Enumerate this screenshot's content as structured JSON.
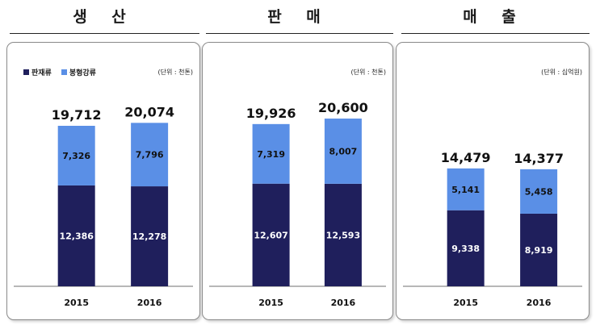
{
  "colors": {
    "panel_product": "#1f1f5c",
    "display_product": "#5a8fe6",
    "axis": "#6f6f6f"
  },
  "panels": [
    {
      "title": "생 산",
      "unit": "(단위 : 천톤)",
      "show_legend": true
    },
    {
      "title": "판 매",
      "unit": "(단위 : 천톤)",
      "show_legend": false
    },
    {
      "title": "매 출",
      "unit": "(단위 : 십억원)",
      "show_legend": false
    }
  ],
  "legend": {
    "panel_label": "판재류",
    "display_label": "봉형강류"
  },
  "chart_data": [
    {
      "type": "bar",
      "stacked": true,
      "title": "생 산",
      "unit": "(단위 : 천톤)",
      "categories": [
        "2015",
        "2016"
      ],
      "series": [
        {
          "name": "판재류",
          "values": [
            12386,
            12278
          ]
        },
        {
          "name": "봉형강류",
          "values": [
            7326,
            7796
          ]
        }
      ],
      "totals": [
        19712,
        20074
      ],
      "total_labels": [
        "19,712",
        "20,074"
      ],
      "value_labels": [
        [
          "12,386",
          "12,278"
        ],
        [
          "7,326",
          "7,796"
        ]
      ]
    },
    {
      "type": "bar",
      "stacked": true,
      "title": "판 매",
      "unit": "(단위 : 천톤)",
      "categories": [
        "2015",
        "2016"
      ],
      "series": [
        {
          "name": "판재류",
          "values": [
            12607,
            12593
          ]
        },
        {
          "name": "봉형강류",
          "values": [
            7319,
            8007
          ]
        }
      ],
      "totals": [
        19926,
        20600
      ],
      "total_labels": [
        "19,926",
        "20,600"
      ],
      "value_labels": [
        [
          "12,607",
          "12,593"
        ],
        [
          "7,319",
          "8,007"
        ]
      ]
    },
    {
      "type": "bar",
      "stacked": true,
      "title": "매 출",
      "unit": "(단위 : 십억원)",
      "categories": [
        "2015",
        "2016"
      ],
      "series": [
        {
          "name": "판재류",
          "values": [
            9338,
            8919
          ]
        },
        {
          "name": "봉형강류",
          "values": [
            5141,
            5458
          ]
        }
      ],
      "totals": [
        14479,
        14377
      ],
      "total_labels": [
        "14,479",
        "14,377"
      ],
      "value_labels": [
        [
          "9,338",
          "8,919"
        ],
        [
          "5,141",
          "5,458"
        ]
      ]
    }
  ]
}
